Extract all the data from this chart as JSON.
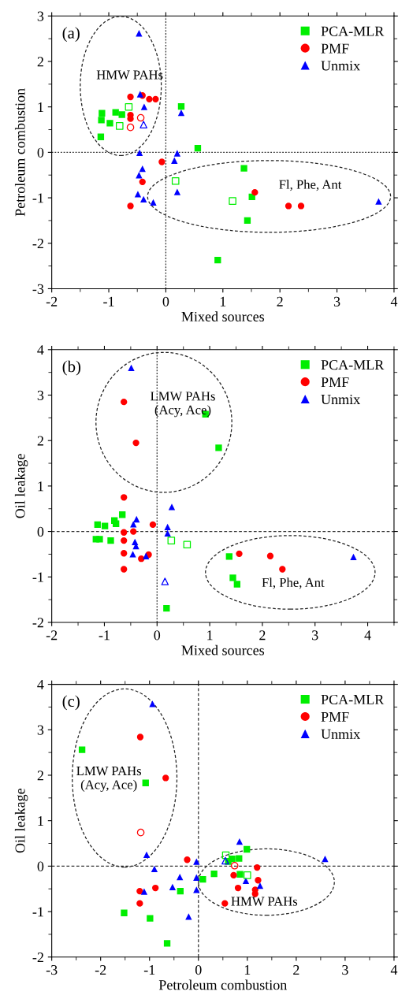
{
  "chart_data": [
    {
      "type": "scatter",
      "xlabel": "Mixed sources",
      "ylabel": "Petroleum combustion",
      "xlim": [
        -2,
        4
      ],
      "ylim": [
        -3,
        3
      ],
      "xticks": [
        -2,
        -1,
        0,
        1,
        2,
        3,
        4
      ],
      "yticks": [
        -3,
        -2,
        -1,
        0,
        1,
        2,
        3
      ],
      "legend": "top right",
      "grid": false,
      "ref_lines": [
        {
          "axis": "x",
          "value": 0,
          "line_style": "dotted"
        },
        {
          "axis": "y",
          "value": 0,
          "line_style": "dotted"
        }
      ],
      "annotations": [
        "(a)",
        "HMW PAHs",
        "Fl, Phe, Ant"
      ],
      "series": [
        {
          "name": "PCA-MLR",
          "color": "#00ee00",
          "marker": "square",
          "x": [
            -1.12,
            -1.13,
            -0.98,
            -0.88,
            -0.77,
            -1.14,
            0.27,
            0.56,
            1.37,
            1.51,
            1.43,
            0.91
          ],
          "values": [
            0.86,
            0.71,
            0.64,
            0.88,
            0.83,
            0.34,
            1.01,
            0.09,
            -0.35,
            -0.98,
            -1.5,
            -2.37
          ]
        },
        {
          "name": "PMF",
          "color": "#ff0000",
          "marker": "circle",
          "x": [
            -0.62,
            -0.41,
            -0.29,
            -0.18,
            -0.62,
            -0.62,
            -0.07,
            -0.41,
            -0.62,
            1.56,
            2.15,
            2.37
          ],
          "values": [
            1.22,
            1.25,
            1.17,
            1.17,
            0.82,
            0.74,
            -0.21,
            -0.65,
            -1.18,
            -0.88,
            -1.18,
            -1.18
          ]
        },
        {
          "name": "Unmix",
          "color": "#0000ff",
          "marker": "triangle",
          "x": [
            -0.47,
            -0.45,
            -0.38,
            0.27,
            -0.46,
            0.2,
            0.15,
            -0.41,
            -0.47,
            -0.49,
            -0.39,
            -0.22,
            0.2,
            3.73
          ],
          "values": [
            2.62,
            1.28,
            1.0,
            0.87,
            -0.01,
            -0.02,
            -0.18,
            -0.36,
            -0.5,
            -0.92,
            -1.03,
            -1.1,
            -0.87,
            -1.08
          ]
        },
        {
          "color": "#00ee00",
          "marker": "square",
          "x": [
            -0.65,
            -0.81,
            0.17,
            1.17
          ],
          "values": [
            1.0,
            0.58,
            -0.63,
            -1.07
          ]
        },
        {
          "color": "#ff0000",
          "marker": "circle",
          "x": [
            -0.62,
            -0.44
          ],
          "values": [
            0.55,
            0.76
          ]
        },
        {
          "color": "#0000ff",
          "marker": "triangle",
          "x": [
            -0.39
          ],
          "values": [
            0.61
          ]
        }
      ]
    },
    {
      "type": "scatter",
      "xlabel": "Mixed sources",
      "ylabel": "Oil leakage",
      "xlim": [
        -2,
        4.5
      ],
      "ylim": [
        -2,
        4
      ],
      "xticks": [
        -2,
        -1,
        0,
        1,
        2,
        3,
        4
      ],
      "yticks": [
        -2,
        -1,
        0,
        1,
        2,
        3,
        4
      ],
      "legend": "top right",
      "grid": false,
      "ref_lines": [
        {
          "axis": "x",
          "value": 0,
          "line_style": "dotted"
        },
        {
          "axis": "y",
          "value": 0,
          "line_style": "dashed"
        }
      ],
      "annotations": [
        "(b)",
        "LMW PAHs\n(Acy, Ace)",
        "Fl, Phe, Ant"
      ],
      "series": [
        {
          "name": "PCA-MLR",
          "color": "#00ee00",
          "marker": "square",
          "x": [
            -1.13,
            -0.99,
            -0.81,
            -0.78,
            -0.66,
            -1.16,
            -1.09,
            -0.88,
            0.92,
            1.17,
            1.37,
            1.44,
            1.52,
            0.18
          ],
          "values": [
            0.15,
            0.12,
            0.24,
            0.17,
            0.37,
            -0.17,
            -0.17,
            -0.2,
            2.58,
            1.84,
            -0.55,
            -1.02,
            -1.16,
            -1.69
          ]
        },
        {
          "name": "PMF",
          "color": "#ff0000",
          "marker": "circle",
          "x": [
            -0.63,
            -0.4,
            -0.63,
            -0.08,
            -0.63,
            -0.45,
            -0.63,
            -0.63,
            -0.3,
            -0.16,
            -0.63,
            -0.4,
            1.56,
            2.15,
            2.38
          ],
          "values": [
            2.85,
            1.95,
            0.75,
            0.15,
            -0.02,
            0.0,
            -0.2,
            -0.48,
            -0.6,
            -0.51,
            -0.83,
            null,
            -0.49,
            -0.54,
            -0.83
          ]
        },
        {
          "name": "Unmix",
          "color": "#0000ff",
          "marker": "triangle",
          "x": [
            -0.49,
            0.28,
            -0.39,
            -0.45,
            0.2,
            0.2,
            -0.42,
            -0.4,
            -0.46,
            -0.21,
            3.73
          ],
          "values": [
            3.6,
            0.54,
            0.27,
            0.16,
            0.1,
            -0.04,
            -0.23,
            -0.32,
            -0.5,
            -0.54,
            -0.56
          ]
        },
        {
          "color": "#00ee00",
          "marker": "square",
          "x": [
            0.27,
            0.57
          ],
          "values": [
            -0.2,
            -0.29
          ]
        },
        {
          "color": "#0000ff",
          "marker": "triangle",
          "x": [
            0.15
          ],
          "values": [
            -1.1
          ]
        }
      ]
    },
    {
      "type": "scatter",
      "xlabel": "Petroleum combustion",
      "ylabel": "Oil leakage",
      "xlim": [
        -3,
        4
      ],
      "ylim": [
        -2,
        4
      ],
      "xticks": [
        -3,
        -2,
        -1,
        0,
        1,
        2,
        3,
        4
      ],
      "yticks": [
        -2,
        -1,
        0,
        1,
        2,
        3,
        4
      ],
      "legend": "top right",
      "grid": false,
      "ref_lines": [
        {
          "axis": "x",
          "value": 0,
          "line_style": "dashed"
        },
        {
          "axis": "y",
          "value": 0,
          "line_style": "dashed"
        }
      ],
      "annotations": [
        "(c)",
        "LMW PAHs\n(Acy, Ace)",
        "HMW PAHs"
      ],
      "series": [
        {
          "name": "PCA-MLR",
          "color": "#00ee00",
          "marker": "square",
          "x": [
            -2.38,
            -1.08,
            0.99,
            0.61,
            0.69,
            0.83,
            0.85,
            0.32,
            0.09,
            -0.37,
            -1.52,
            -0.99,
            -0.64
          ],
          "values": [
            2.56,
            1.83,
            0.37,
            0.1,
            0.16,
            0.17,
            -0.18,
            -0.17,
            -0.29,
            -0.55,
            -1.03,
            -1.15,
            -1.7
          ]
        },
        {
          "name": "PMF",
          "color": "#ff0000",
          "marker": "circle",
          "x": [
            -1.19,
            -0.67,
            -0.23,
            1.2,
            0.72,
            1.22,
            0.81,
            1.16,
            1.16,
            0.54,
            -0.88,
            -1.2,
            -1.2
          ],
          "values": [
            2.84,
            1.94,
            0.14,
            -0.03,
            -0.2,
            -0.31,
            -0.48,
            -0.52,
            -0.61,
            -0.82,
            -0.48,
            -0.55,
            -0.82
          ]
        },
        {
          "name": "Unmix",
          "color": "#0000ff",
          "marker": "triangle",
          "x": [
            -0.94,
            -1.06,
            0.84,
            -0.04,
            2.59,
            -0.9,
            -0.38,
            -0.04,
            -0.53,
            -0.04,
            -1.11,
            0.97,
            1.26,
            -0.2
          ],
          "values": [
            3.57,
            0.25,
            0.54,
            0.1,
            0.16,
            -0.06,
            -0.24,
            -0.25,
            -0.46,
            -0.52,
            -0.56,
            -0.32,
            -0.43,
            -1.11
          ]
        },
        {
          "color": "#00ee00",
          "marker": "square",
          "x": [
            0.56,
            1.0
          ],
          "values": [
            0.24,
            -0.2
          ]
        },
        {
          "color": "#ff0000",
          "marker": "circle",
          "x": [
            -1.18,
            0.74
          ],
          "values": [
            0.74,
            0.01
          ]
        },
        {
          "color": "#0000ff",
          "marker": "triangle",
          "x": [
            0.55
          ],
          "values": [
            0.12
          ]
        }
      ]
    }
  ]
}
